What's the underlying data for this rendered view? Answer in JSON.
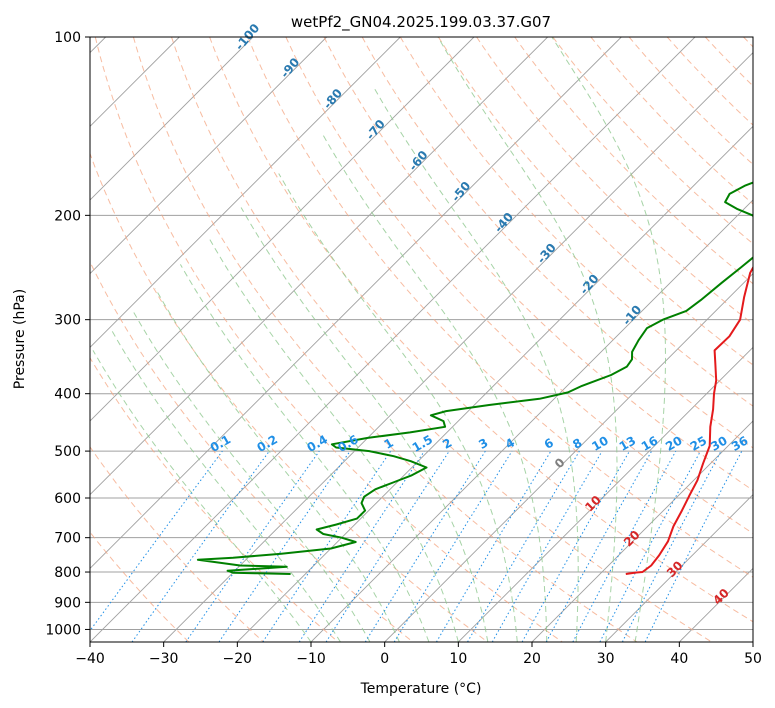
{
  "chart_data": {
    "type": "line",
    "title": "wetPf2_GN04.2025.199.03.37.G07",
    "xlabel": "Temperature (°C)",
    "ylabel": "Pressure (hPa)",
    "xlim": [
      -40,
      50
    ],
    "ylim": [
      1050,
      100
    ],
    "y_scale": "log",
    "x_ticks": [
      -40,
      -30,
      -20,
      -10,
      0,
      10,
      20,
      30,
      40,
      50
    ],
    "y_ticks": [
      100,
      200,
      300,
      400,
      500,
      600,
      700,
      800,
      900,
      1000
    ],
    "grid": true,
    "series": [
      {
        "color": "#e41a1c",
        "points": [
          [
            23.5,
            806
          ],
          [
            24.5,
            802
          ],
          [
            25.5,
            800
          ],
          [
            25.8,
            780
          ],
          [
            25.5,
            750
          ],
          [
            24.8,
            710
          ],
          [
            23.5,
            670
          ],
          [
            22.5,
            630
          ],
          [
            21.5,
            595
          ],
          [
            20.5,
            560
          ],
          [
            19,
            525
          ],
          [
            17.5,
            490
          ],
          [
            15,
            455
          ],
          [
            13,
            425
          ],
          [
            11,
            400
          ],
          [
            9.5,
            380
          ],
          [
            7,
            355
          ],
          [
            5.2,
            338
          ],
          [
            5.3,
            320
          ],
          [
            4.5,
            300
          ],
          [
            2,
            275
          ],
          [
            -0.5,
            250
          ],
          [
            -1.8,
            230
          ],
          [
            -1.8,
            215
          ],
          [
            -0.2,
            205
          ],
          [
            1.5,
            197
          ],
          [
            2.5,
            185
          ],
          [
            2.7,
            170
          ],
          [
            3.2,
            155
          ],
          [
            3.8,
            140
          ],
          [
            4.3,
            128
          ],
          [
            4.5,
            118
          ],
          [
            5,
            112
          ],
          [
            6.5,
            108
          ],
          [
            8.5,
            104
          ],
          [
            10,
            100
          ]
        ]
      },
      {
        "color": "#008000",
        "points": [
          [
            -22,
            806
          ],
          [
            -26.5,
            804
          ],
          [
            -30,
            802
          ],
          [
            -31,
            796
          ],
          [
            -26,
            788
          ],
          [
            -23.5,
            784
          ],
          [
            -30,
            780
          ],
          [
            -36.5,
            763
          ],
          [
            -32,
            757
          ],
          [
            -26,
            745
          ],
          [
            -20,
            730
          ],
          [
            -17.5,
            712
          ],
          [
            -20,
            700
          ],
          [
            -23,
            690
          ],
          [
            -24.5,
            678
          ],
          [
            -22.5,
            665
          ],
          [
            -20.5,
            650
          ],
          [
            -20.5,
            630
          ],
          [
            -22,
            612
          ],
          [
            -22.5,
            597
          ],
          [
            -22,
            580
          ],
          [
            -20.5,
            565
          ],
          [
            -19,
            550
          ],
          [
            -18,
            533
          ],
          [
            -21,
            520
          ],
          [
            -24,
            510
          ],
          [
            -28,
            500
          ],
          [
            -33,
            493
          ],
          [
            -34,
            487
          ],
          [
            -30,
            475
          ],
          [
            -25,
            465
          ],
          [
            -21,
            455
          ],
          [
            -22,
            445
          ],
          [
            -24.5,
            435
          ],
          [
            -23,
            428
          ],
          [
            -18,
            418
          ],
          [
            -12,
            408
          ],
          [
            -9,
            398
          ],
          [
            -8,
            388
          ],
          [
            -5.5,
            372
          ],
          [
            -4.5,
            360
          ],
          [
            -4.8,
            350
          ],
          [
            -5.8,
            340
          ],
          [
            -6.5,
            325
          ],
          [
            -7,
            310
          ],
          [
            -6,
            300
          ],
          [
            -4,
            290
          ],
          [
            -3.5,
            278
          ],
          [
            -3,
            260
          ],
          [
            -2.5,
            245
          ],
          [
            -2,
            230
          ],
          [
            -2.5,
            218
          ],
          [
            -5,
            208
          ],
          [
            -8,
            200
          ],
          [
            -11,
            195
          ],
          [
            -13.5,
            190
          ],
          [
            -14,
            184
          ],
          [
            -13,
            178
          ],
          [
            -11,
            172
          ],
          [
            -9.5,
            165
          ],
          [
            -8,
            155
          ],
          [
            -7,
            145
          ],
          [
            -6,
            135
          ],
          [
            -4.5,
            125
          ],
          [
            -2.5,
            115
          ],
          [
            -1,
            108
          ],
          [
            0.5,
            103
          ],
          [
            1.5,
            100
          ]
        ]
      }
    ],
    "isotherm_color": "#a0a0a0",
    "dry_adiabat_color": "#f4a582",
    "moist_adiabat_color": "#90c890",
    "mixing_ratio_color": "#1f8fe6",
    "mixing_ratio_labels": [
      "0.1",
      "0.2",
      "0.4",
      "0.6",
      "1",
      "1.5",
      "2",
      "3",
      "4",
      "6",
      "8",
      "10",
      "13",
      "16",
      "20",
      "25",
      "30",
      "36"
    ],
    "dry_adiabat_labels": [
      "-100",
      "-90",
      "-80",
      "-70",
      "-60",
      "-50",
      "-40",
      "-30",
      "-20",
      "-10"
    ],
    "moist_adiabat_labels": [
      "0",
      "10",
      "20",
      "30",
      "40"
    ]
  }
}
